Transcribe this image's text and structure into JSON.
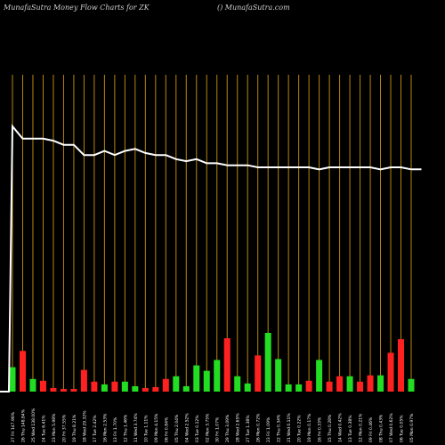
{
  "header": {
    "title_left": "MunafaSutra  Money Flow  Charts for ZK",
    "title_right": "() MunafaSutra.com"
  },
  "colors": {
    "background": "#000000",
    "gridline": "#b8860b",
    "price_line": "#ffffff",
    "up_bar": "#22dd22",
    "down_bar": "#ff2020",
    "label_text": "#ffffff"
  },
  "chart_data": {
    "type": "bar",
    "price_line": [
      100,
      94,
      94,
      94,
      93,
      91,
      91,
      86,
      86,
      88,
      86,
      88,
      89,
      87,
      86,
      86,
      84,
      83,
      84,
      82,
      82,
      81,
      81,
      81,
      80,
      80,
      80,
      80,
      80,
      80,
      79,
      80,
      80,
      80,
      80,
      80,
      79,
      80,
      80,
      79,
      79
    ],
    "bars": [
      {
        "label": "27 Fri 147.96%",
        "value": 27,
        "dir": "up"
      },
      {
        "label": "26 Thu 148.84%",
        "value": 45,
        "dir": "down"
      },
      {
        "label": "25 Wed 138.00%",
        "value": 14,
        "dir": "up"
      },
      {
        "label": "24 Tue 6.41%",
        "value": 12,
        "dir": "down"
      },
      {
        "label": "23 Mon 5.98%",
        "value": 4,
        "dir": "down"
      },
      {
        "label": "20 Fri 37.55%",
        "value": 3,
        "dir": "down"
      },
      {
        "label": "19 Thu 8.21%",
        "value": 3,
        "dir": "down"
      },
      {
        "label": "18 Wed 29.32%",
        "value": 24,
        "dir": "down"
      },
      {
        "label": "17 Tue 2.42%",
        "value": 11,
        "dir": "down"
      },
      {
        "label": "16 Mon 2.53%",
        "value": 8,
        "dir": "up"
      },
      {
        "label": "13 Fri 1.70%",
        "value": 11,
        "dir": "down"
      },
      {
        "label": "12 Thu 1.46%",
        "value": 11,
        "dir": "up"
      },
      {
        "label": "11 Wed 3.74%",
        "value": 6,
        "dir": "up"
      },
      {
        "label": "10 Tue 1.11%",
        "value": 4,
        "dir": "down"
      },
      {
        "label": "09 Mon 4.15%",
        "value": 5,
        "dir": "down"
      },
      {
        "label": "06 Fri 0.84%",
        "value": 14,
        "dir": "down"
      },
      {
        "label": "05 Thu 2.04%",
        "value": 17,
        "dir": "up"
      },
      {
        "label": "04 Wed 2.52%",
        "value": 6,
        "dir": "up"
      },
      {
        "label": "03 Tue 0.12%",
        "value": 29,
        "dir": "up"
      },
      {
        "label": "02 Mon 3.75%",
        "value": 23,
        "dir": "up"
      },
      {
        "label": "30 Fri 1.07%",
        "value": 35,
        "dir": "up"
      },
      {
        "label": "29 Thu 3.09%",
        "value": 59,
        "dir": "down"
      },
      {
        "label": "28 Wed 2.65%",
        "value": 17,
        "dir": "up"
      },
      {
        "label": "27 Tue 1.38%",
        "value": 9,
        "dir": "up"
      },
      {
        "label": "26 Mon 0.72%",
        "value": 40,
        "dir": "down"
      },
      {
        "label": "23 Fri 1.09%",
        "value": 65,
        "dir": "up"
      },
      {
        "label": "22 Thu 0.34%",
        "value": 36,
        "dir": "up"
      },
      {
        "label": "21 Wed 0.11%",
        "value": 8,
        "dir": "up"
      },
      {
        "label": "20 Tue 0.22%",
        "value": 8,
        "dir": "up"
      },
      {
        "label": "19 Mon 0.17%",
        "value": 12,
        "dir": "down"
      },
      {
        "label": "16 Fri 0.33%",
        "value": 35,
        "dir": "up"
      },
      {
        "label": "15 Thu 0.28%",
        "value": 11,
        "dir": "down"
      },
      {
        "label": "14 Wed 0.42%",
        "value": 17,
        "dir": "down"
      },
      {
        "label": "13 Tue 0.38%",
        "value": 17,
        "dir": "up"
      },
      {
        "label": "12 Mon 0.21%",
        "value": 11,
        "dir": "down"
      },
      {
        "label": "09 Fri 0.46%",
        "value": 18,
        "dir": "down"
      },
      {
        "label": "08 Thu 0.43%",
        "value": 18,
        "dir": "up"
      },
      {
        "label": "07 Wed 0.62%",
        "value": 43,
        "dir": "down"
      },
      {
        "label": "06 Tue 0.05%",
        "value": 58,
        "dir": "down"
      },
      {
        "label": "05 Mon 0.97%",
        "value": 14,
        "dir": "up"
      }
    ]
  }
}
